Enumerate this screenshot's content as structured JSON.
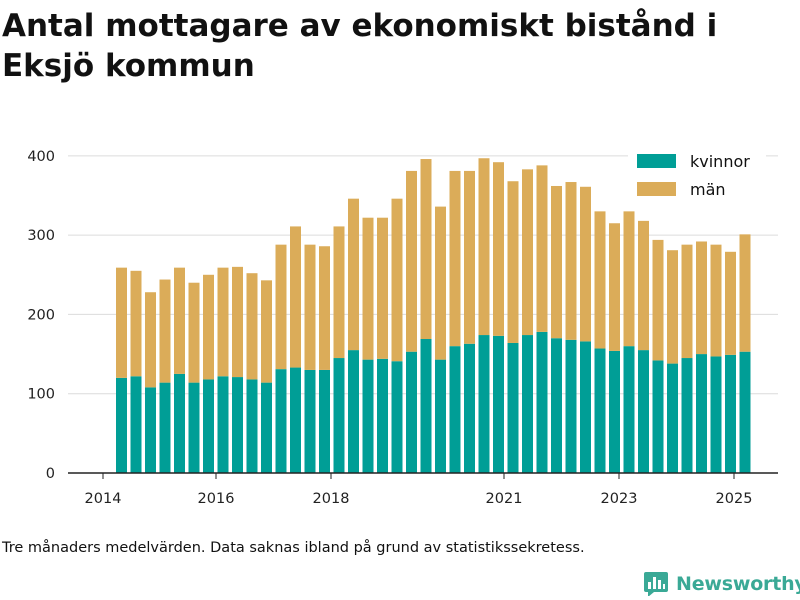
{
  "title": "Antal mottagare av ekonomiskt bistånd i Eksjö kommun",
  "footnote": "Tre månaders medelvärden. Data saknas ibland på grund av statistikssekretess.",
  "brand": {
    "name": "Newsworthy",
    "icon": "newsworthy-bar-chart-logo-icon"
  },
  "colors": {
    "kvinnor": "#009e96",
    "man": "#dbac59",
    "grid": "#dcdcdc",
    "axis": "#222222",
    "brand": "#3aa996"
  },
  "chart_data": {
    "type": "bar",
    "stacked": true,
    "x_ticks": [
      "2014",
      "2016",
      "2018",
      "2021",
      "2023",
      "2025"
    ],
    "y_ticks": [
      0,
      100,
      200,
      300,
      400
    ],
    "ylim": [
      0,
      420
    ],
    "grid": "horizontal",
    "legend_position": "top-right",
    "series": [
      {
        "name": "kvinnor",
        "color": "#009e96",
        "values": [
          120,
          122,
          108,
          114,
          125,
          114,
          118,
          122,
          121,
          118,
          114,
          131,
          133,
          130,
          130,
          145,
          155,
          143,
          144,
          141,
          153,
          169,
          143,
          160,
          163,
          174,
          173,
          164,
          174,
          178,
          170,
          168,
          166,
          157,
          154,
          160,
          155,
          142,
          138,
          145,
          150,
          147,
          149,
          153
        ]
      },
      {
        "name": "män",
        "color": "#dbac59",
        "values": [
          139,
          133,
          120,
          130,
          134,
          126,
          132,
          137,
          139,
          134,
          129,
          157,
          178,
          158,
          156,
          166,
          191,
          179,
          178,
          205,
          228,
          227,
          193,
          221,
          218,
          223,
          219,
          204,
          209,
          210,
          192,
          199,
          195,
          173,
          161,
          170,
          163,
          152,
          143,
          143,
          142,
          141,
          130,
          148
        ]
      }
    ]
  }
}
